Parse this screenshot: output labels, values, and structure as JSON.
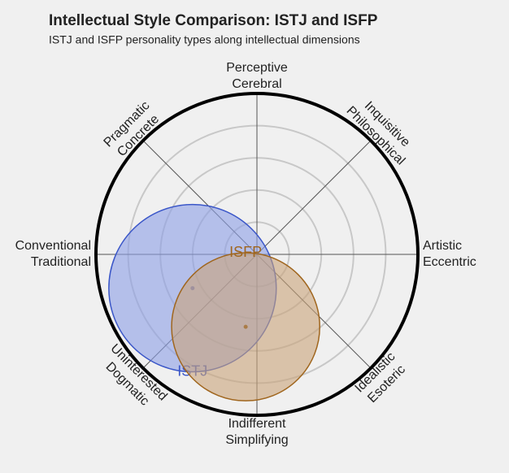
{
  "chart_data": {
    "type": "compass",
    "title": "Intellectual Style Comparison: ISTJ and ISFP",
    "subtitle": "ISTJ and ISFP personality types along intellectual dimensions",
    "axes": [
      [
        "Perceptive",
        "Cerebral"
      ],
      [
        "Inquisitive",
        "Philosophical"
      ],
      [
        "Artistic",
        "Eccentric"
      ],
      [
        "Idealistic",
        "Esoteric"
      ],
      [
        "Indifferent",
        "Simplifying"
      ],
      [
        "Uninterested",
        "Dogmatic"
      ],
      [
        "Conventional",
        "Traditional"
      ],
      [
        "Pragmatic",
        "Concrete"
      ]
    ],
    "xlim": [
      -1,
      1
    ],
    "ylim": [
      -1,
      1
    ],
    "rticks": [
      0.2,
      0.4,
      0.6,
      0.8
    ],
    "series": [
      {
        "name": "ISTJ",
        "color": "#3a56c8",
        "fill": "#8c9ee6",
        "x": -0.4,
        "y": -0.21,
        "r": 0.52
      },
      {
        "name": "ISFP",
        "color": "#a0661e",
        "fill": "#c9a47a",
        "x": -0.07,
        "y": -0.45,
        "r": 0.46
      }
    ]
  }
}
